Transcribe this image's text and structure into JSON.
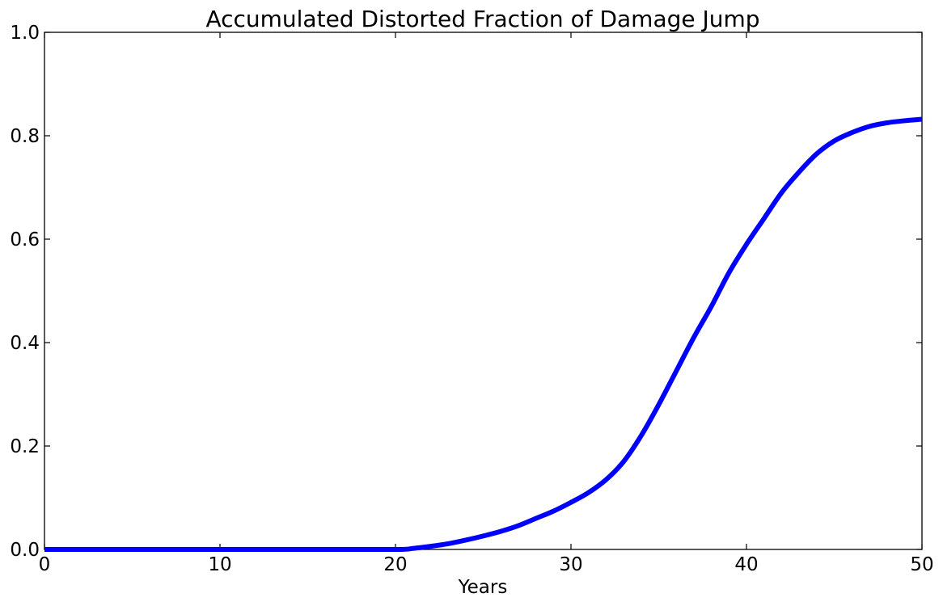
{
  "chart_data": {
    "type": "line",
    "title": "Accumulated Distorted Fraction of Damage Jump",
    "xlabel": "Years",
    "ylabel": "",
    "xlim": [
      0,
      50
    ],
    "ylim": [
      0,
      1.0
    ],
    "xticks": [
      "0",
      "10",
      "20",
      "30",
      "40",
      "50"
    ],
    "yticks": [
      "0.0",
      "0.2",
      "0.4",
      "0.6",
      "0.8",
      "1.0"
    ],
    "grid": false,
    "legend": "none",
    "series": [
      {
        "color": "#0000ff",
        "x": [
          0,
          5,
          10,
          15,
          20,
          21,
          22,
          23,
          24,
          25,
          26,
          27,
          28,
          29,
          30,
          31,
          32,
          33,
          34,
          35,
          36,
          37,
          38,
          39,
          40,
          41,
          42,
          43,
          44,
          45,
          46,
          47,
          48,
          49,
          50
        ],
        "y": [
          0.0,
          0.0,
          0.0,
          0.0,
          0.0,
          0.002,
          0.006,
          0.011,
          0.018,
          0.026,
          0.035,
          0.046,
          0.06,
          0.074,
          0.091,
          0.11,
          0.135,
          0.17,
          0.22,
          0.28,
          0.345,
          0.41,
          0.47,
          0.535,
          0.59,
          0.64,
          0.69,
          0.73,
          0.765,
          0.79,
          0.806,
          0.818,
          0.825,
          0.829,
          0.832
        ]
      }
    ]
  }
}
